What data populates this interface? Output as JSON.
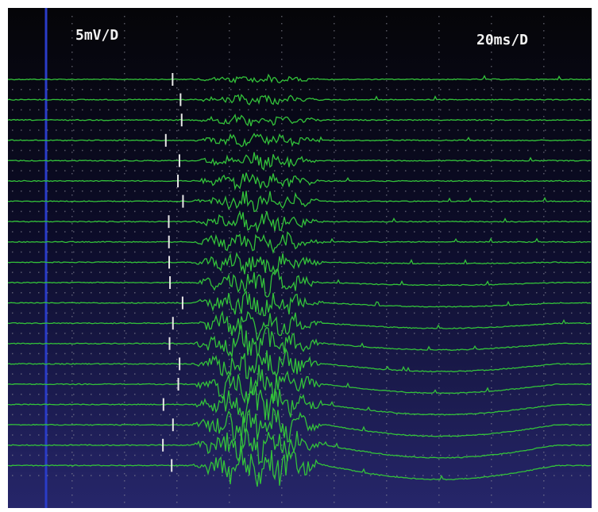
{
  "screen": {
    "amplitude_scale": "5mV/D",
    "time_scale": "20ms/D"
  }
}
